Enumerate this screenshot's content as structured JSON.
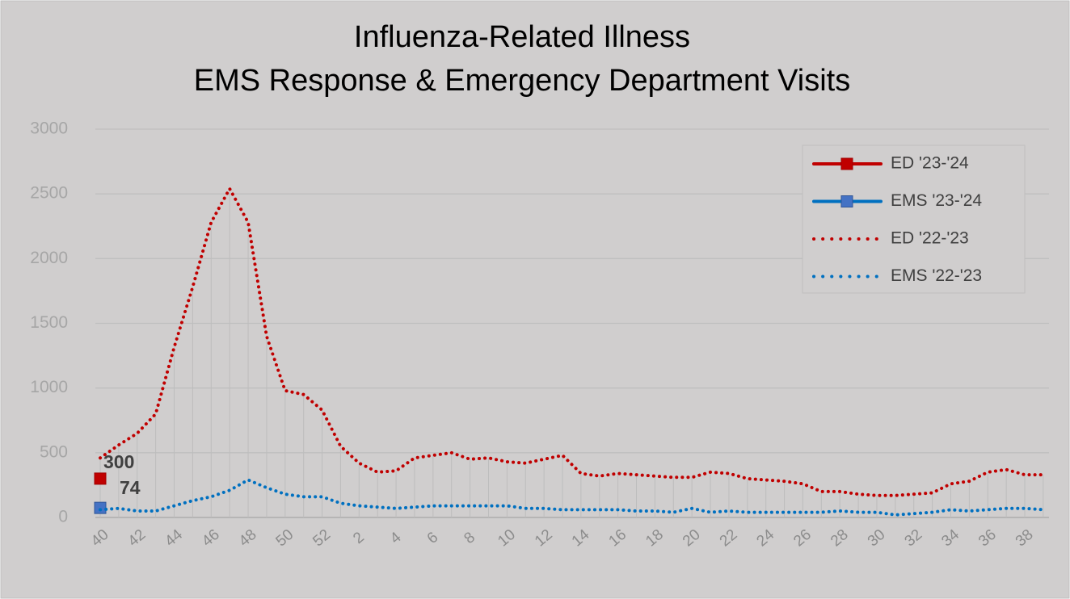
{
  "chart_data": {
    "type": "line",
    "title": "Influenza-Related  Illness",
    "subtitle": "EMS Response & Emergency Department  Visits",
    "categories": [
      40,
      null,
      42,
      null,
      44,
      null,
      46,
      null,
      48,
      null,
      50,
      null,
      52,
      null,
      2,
      null,
      4,
      null,
      6,
      null,
      8,
      null,
      10,
      null,
      12,
      null,
      14,
      null,
      16,
      null,
      18,
      null,
      20,
      null,
      22,
      null,
      24,
      null,
      26,
      null,
      28,
      null,
      30,
      null,
      32,
      null,
      34,
      null,
      36,
      null,
      38,
      null
    ],
    "series": [
      {
        "name": "ED '23-'24",
        "color": "#c00000",
        "style": "solid",
        "marker": true,
        "values": [
          300,
          null,
          null,
          null,
          null,
          null,
          null,
          null,
          null,
          null,
          null,
          null,
          null,
          null,
          null,
          null,
          null,
          null,
          null,
          null,
          null,
          null,
          null,
          null,
          null,
          null,
          null,
          null,
          null,
          null,
          null,
          null,
          null,
          null,
          null,
          null,
          null,
          null,
          null,
          null,
          null,
          null,
          null,
          null,
          null,
          null,
          null,
          null,
          null,
          null,
          null,
          null
        ]
      },
      {
        "name": "EMS '23-'24",
        "color": "#0070c0",
        "style": "solid",
        "marker": true,
        "values": [
          74,
          null,
          null,
          null,
          null,
          null,
          null,
          null,
          null,
          null,
          null,
          null,
          null,
          null,
          null,
          null,
          null,
          null,
          null,
          null,
          null,
          null,
          null,
          null,
          null,
          null,
          null,
          null,
          null,
          null,
          null,
          null,
          null,
          null,
          null,
          null,
          null,
          null,
          null,
          null,
          null,
          null,
          null,
          null,
          null,
          null,
          null,
          null,
          null,
          null,
          null,
          null
        ]
      },
      {
        "name": "ED '22-'23",
        "color": "#c00000",
        "style": "dotted",
        "marker": false,
        "values": [
          460,
          560,
          650,
          800,
          1315,
          1780,
          2280,
          2540,
          2280,
          1400,
          980,
          950,
          830,
          550,
          420,
          350,
          360,
          460,
          480,
          500,
          450,
          460,
          430,
          420,
          450,
          480,
          340,
          320,
          340,
          330,
          320,
          310,
          310,
          350,
          340,
          300,
          290,
          280,
          260,
          200,
          200,
          180,
          170,
          170,
          180,
          190,
          260,
          280,
          350,
          370,
          330,
          330
        ]
      },
      {
        "name": "EMS '22-'23",
        "color": "#0070c0",
        "style": "dotted",
        "marker": false,
        "values": [
          60,
          70,
          50,
          50,
          90,
          130,
          160,
          210,
          290,
          230,
          180,
          160,
          160,
          110,
          90,
          80,
          70,
          80,
          90,
          90,
          90,
          90,
          90,
          70,
          70,
          60,
          60,
          60,
          60,
          50,
          50,
          40,
          70,
          40,
          50,
          40,
          40,
          40,
          40,
          40,
          50,
          40,
          40,
          20,
          30,
          40,
          60,
          50,
          60,
          70,
          70,
          60
        ]
      }
    ],
    "ylim": [
      0,
      3000
    ],
    "yticks": [
      0,
      500,
      1000,
      1500,
      2000,
      2500,
      3000
    ],
    "grid": true,
    "legend": "upper right"
  }
}
